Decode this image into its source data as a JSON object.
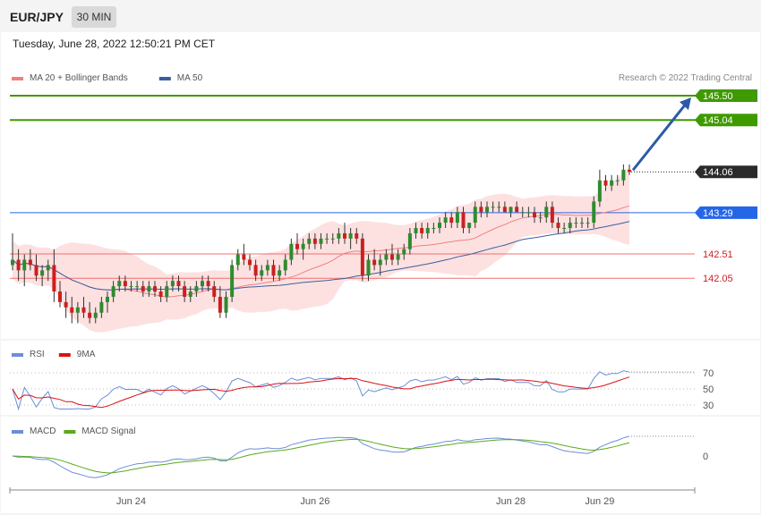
{
  "header": {
    "symbol": "EUR/JPY",
    "timeframe": "30 MIN",
    "datetime": "Tuesday, June 28, 2022 12:50:21 PM CET"
  },
  "colors": {
    "up": "#2e8b2e",
    "down": "#cc1f1f",
    "ma20": "#f08080",
    "ma50": "#3a5fa0",
    "target": "#3f9a00",
    "pivot": "#2566e8",
    "support": "#f07070",
    "arrow": "#2b5aa8",
    "rsi": "#6b8ed8",
    "rsi_ma": "#dd1111",
    "macd": "#6b8ed8",
    "macd_signal": "#5aaa1a"
  },
  "price_panel": {
    "legend": [
      {
        "label": "MA 20 + Bollinger Bands",
        "color": "#f08080"
      },
      {
        "label": "MA 50",
        "color": "#3a5fa0"
      }
    ],
    "copyright": "Research © 2022 Trading Central",
    "levels": [
      {
        "value": 145.5,
        "label": "145.50",
        "kind": "target"
      },
      {
        "value": 145.04,
        "label": "145.04",
        "kind": "target"
      },
      {
        "value": 144.06,
        "label": "144.06",
        "kind": "last"
      },
      {
        "value": 143.29,
        "label": "143.29",
        "kind": "pivot"
      },
      {
        "value": 142.51,
        "label": "142.51",
        "kind": "support"
      },
      {
        "value": 142.05,
        "label": "142.05",
        "kind": "support"
      }
    ]
  },
  "rsi_panel": {
    "legend": [
      {
        "label": "RSI",
        "color": "#6b8ed8"
      },
      {
        "label": "9MA",
        "color": "#dd1111"
      }
    ],
    "ticks": [
      "70",
      "50",
      "30"
    ]
  },
  "macd_panel": {
    "legend": [
      {
        "label": "MACD",
        "color": "#6b8ed8"
      },
      {
        "label": "MACD Signal",
        "color": "#5aaa1a"
      }
    ],
    "ticks": [
      "0"
    ]
  },
  "chart_data": {
    "type": "candlestick",
    "x_labels": [
      "Jun 24",
      "Jun 26",
      "Jun 28",
      "Jun 29"
    ],
    "y_range": [
      139.5,
      145.6
    ],
    "candles": [
      [
        142.3,
        142.9,
        142.2,
        142.4
      ],
      [
        142.4,
        142.6,
        142.0,
        142.2
      ],
      [
        142.2,
        142.5,
        141.9,
        142.4
      ],
      [
        142.4,
        142.6,
        142.2,
        142.3
      ],
      [
        142.3,
        142.5,
        142.0,
        142.1
      ],
      [
        142.1,
        142.3,
        141.9,
        142.2
      ],
      [
        142.2,
        142.4,
        142.0,
        142.3
      ],
      [
        142.3,
        142.6,
        141.6,
        141.8
      ],
      [
        141.8,
        142.0,
        141.5,
        141.6
      ],
      [
        141.6,
        141.8,
        141.3,
        141.5
      ],
      [
        141.5,
        141.7,
        141.2,
        141.4
      ],
      [
        141.4,
        141.6,
        141.2,
        141.5
      ],
      [
        141.5,
        141.7,
        141.3,
        141.4
      ],
      [
        141.4,
        141.6,
        141.2,
        141.3
      ],
      [
        141.3,
        141.5,
        141.2,
        141.4
      ],
      [
        141.4,
        141.7,
        141.3,
        141.6
      ],
      [
        141.6,
        141.8,
        141.4,
        141.7
      ],
      [
        141.7,
        142.0,
        141.6,
        141.9
      ],
      [
        141.9,
        142.1,
        141.8,
        142.0
      ],
      [
        142.0,
        142.1,
        141.8,
        141.9
      ],
      [
        141.9,
        142.0,
        141.8,
        141.9
      ],
      [
        141.9,
        142.0,
        141.8,
        141.9
      ],
      [
        141.9,
        142.0,
        141.7,
        141.8
      ],
      [
        141.8,
        142.0,
        141.7,
        141.9
      ],
      [
        141.9,
        142.0,
        141.7,
        141.8
      ],
      [
        141.8,
        141.9,
        141.6,
        141.7
      ],
      [
        141.7,
        142.0,
        141.6,
        141.9
      ],
      [
        141.9,
        142.1,
        141.8,
        142.0
      ],
      [
        142.0,
        142.1,
        141.8,
        141.9
      ],
      [
        141.9,
        142.0,
        141.6,
        141.7
      ],
      [
        141.7,
        141.9,
        141.6,
        141.8
      ],
      [
        141.8,
        142.0,
        141.7,
        141.9
      ],
      [
        141.9,
        142.1,
        141.8,
        142.0
      ],
      [
        142.0,
        142.1,
        141.8,
        141.9
      ],
      [
        141.9,
        142.0,
        141.6,
        141.7
      ],
      [
        141.7,
        141.9,
        141.3,
        141.4
      ],
      [
        141.4,
        141.8,
        141.3,
        141.7
      ],
      [
        141.7,
        142.4,
        141.6,
        142.3
      ],
      [
        142.3,
        142.6,
        142.2,
        142.5
      ],
      [
        142.5,
        142.7,
        142.3,
        142.4
      ],
      [
        142.4,
        142.5,
        142.2,
        142.3
      ],
      [
        142.3,
        142.4,
        142.0,
        142.1
      ],
      [
        142.1,
        142.3,
        142.0,
        142.2
      ],
      [
        142.2,
        142.4,
        142.1,
        142.3
      ],
      [
        142.3,
        142.4,
        142.0,
        142.1
      ],
      [
        142.1,
        142.3,
        142.0,
        142.2
      ],
      [
        142.2,
        142.5,
        142.1,
        142.4
      ],
      [
        142.4,
        142.8,
        142.3,
        142.7
      ],
      [
        142.7,
        142.9,
        142.5,
        142.6
      ],
      [
        142.6,
        142.8,
        142.4,
        142.7
      ],
      [
        142.7,
        142.9,
        142.6,
        142.8
      ],
      [
        142.8,
        142.9,
        142.6,
        142.7
      ],
      [
        142.7,
        142.9,
        142.6,
        142.8
      ],
      [
        142.8,
        142.9,
        142.7,
        142.8
      ],
      [
        142.8,
        142.9,
        142.7,
        142.8
      ],
      [
        142.8,
        143.0,
        142.7,
        142.9
      ],
      [
        142.9,
        143.1,
        142.7,
        142.8
      ],
      [
        142.8,
        143.0,
        142.6,
        142.9
      ],
      [
        142.9,
        143.0,
        142.7,
        142.8
      ],
      [
        142.8,
        142.9,
        142.0,
        142.1
      ],
      [
        142.1,
        142.5,
        142.0,
        142.4
      ],
      [
        142.4,
        142.6,
        142.2,
        142.3
      ],
      [
        142.3,
        142.5,
        142.1,
        142.4
      ],
      [
        142.4,
        142.6,
        142.3,
        142.5
      ],
      [
        142.5,
        142.7,
        142.3,
        142.4
      ],
      [
        142.4,
        142.6,
        142.3,
        142.5
      ],
      [
        142.5,
        142.7,
        142.4,
        142.6
      ],
      [
        142.6,
        143.0,
        142.5,
        142.9
      ],
      [
        142.9,
        143.1,
        142.8,
        143.0
      ],
      [
        143.0,
        143.1,
        142.8,
        142.9
      ],
      [
        142.9,
        143.1,
        142.8,
        143.0
      ],
      [
        143.0,
        143.1,
        142.9,
        143.0
      ],
      [
        143.0,
        143.2,
        142.9,
        143.1
      ],
      [
        143.1,
        143.3,
        143.0,
        143.2
      ],
      [
        143.2,
        143.3,
        143.0,
        143.1
      ],
      [
        143.1,
        143.4,
        143.0,
        143.3
      ],
      [
        143.3,
        143.4,
        142.9,
        143.0
      ],
      [
        143.0,
        143.1,
        142.9,
        143.1
      ],
      [
        143.1,
        143.5,
        143.0,
        143.4
      ],
      [
        143.4,
        143.5,
        143.2,
        143.3
      ],
      [
        143.3,
        143.5,
        143.2,
        143.4
      ],
      [
        143.4,
        143.5,
        143.3,
        143.4
      ],
      [
        143.4,
        143.5,
        143.3,
        143.4
      ],
      [
        143.4,
        143.5,
        143.3,
        143.3
      ],
      [
        143.3,
        143.4,
        143.2,
        143.4
      ],
      [
        143.4,
        143.5,
        143.3,
        143.3
      ],
      [
        143.3,
        143.4,
        143.2,
        143.3
      ],
      [
        143.3,
        143.4,
        143.2,
        143.3
      ],
      [
        143.3,
        143.4,
        143.1,
        143.2
      ],
      [
        143.2,
        143.3,
        143.1,
        143.2
      ],
      [
        143.2,
        143.5,
        143.1,
        143.4
      ],
      [
        143.4,
        143.5,
        143.0,
        143.1
      ],
      [
        143.1,
        143.2,
        142.9,
        143.0
      ],
      [
        143.0,
        143.1,
        142.9,
        143.0
      ],
      [
        143.0,
        143.2,
        142.9,
        143.1
      ],
      [
        143.1,
        143.2,
        143.0,
        143.1
      ],
      [
        143.1,
        143.2,
        143.0,
        143.1
      ],
      [
        143.1,
        143.2,
        143.0,
        143.1
      ],
      [
        143.1,
        143.6,
        143.0,
        143.5
      ],
      [
        143.5,
        144.1,
        143.4,
        143.9
      ],
      [
        143.9,
        144.0,
        143.7,
        143.8
      ],
      [
        143.8,
        144.0,
        143.7,
        143.9
      ],
      [
        143.9,
        144.0,
        143.8,
        143.9
      ],
      [
        143.9,
        144.2,
        143.8,
        144.1
      ],
      [
        144.1,
        144.2,
        144.0,
        144.06
      ]
    ]
  }
}
